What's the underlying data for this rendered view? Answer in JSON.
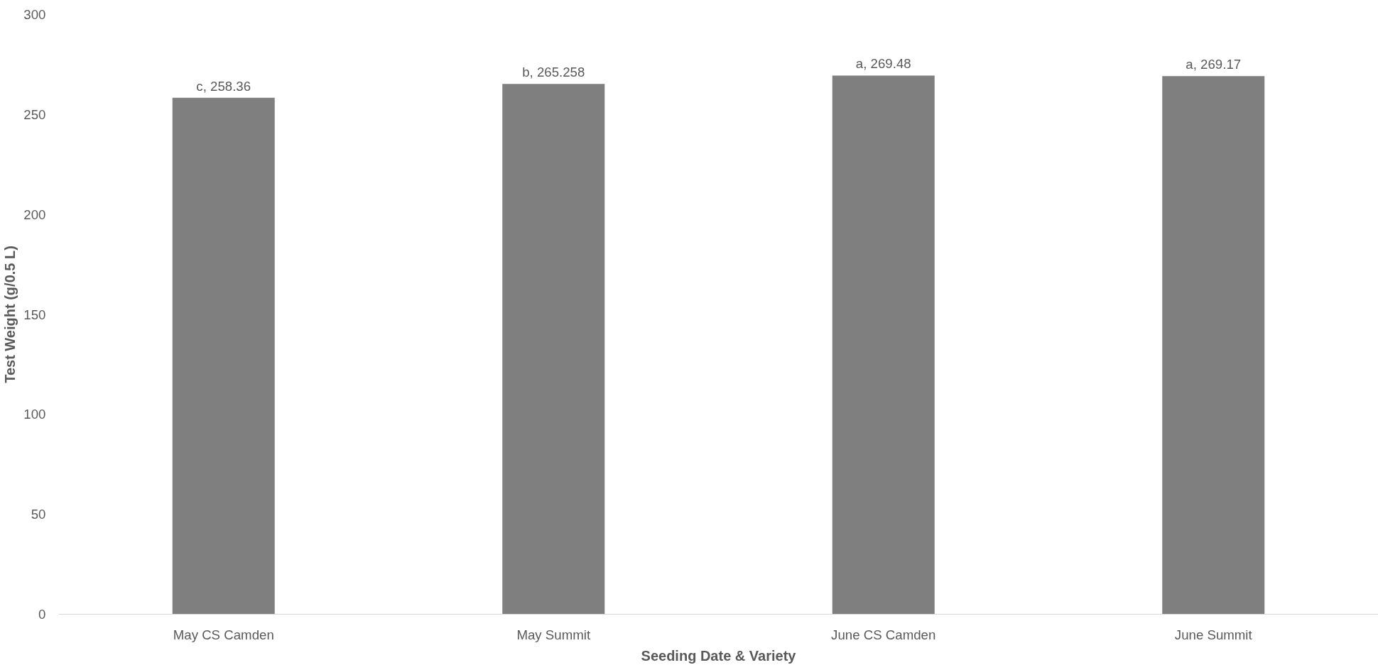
{
  "chart_data": {
    "type": "bar",
    "xlabel": "Seeding Date & Variety",
    "ylabel": "Test Weight (g/0.5 L)",
    "categories": [
      "May CS Camden",
      "May Summit",
      "June CS Camden",
      "June Summit"
    ],
    "values": [
      258.36,
      265.258,
      269.48,
      269.17
    ],
    "color": "#7f7f7f",
    "value_labels": [
      "c, 258.36",
      "b, 265.258",
      "a, 269.48",
      "a, 269.17"
    ],
    "ylim": [
      0,
      300
    ],
    "yticks": [
      0,
      50,
      100,
      150,
      200,
      250,
      300
    ],
    "grid": false
  }
}
